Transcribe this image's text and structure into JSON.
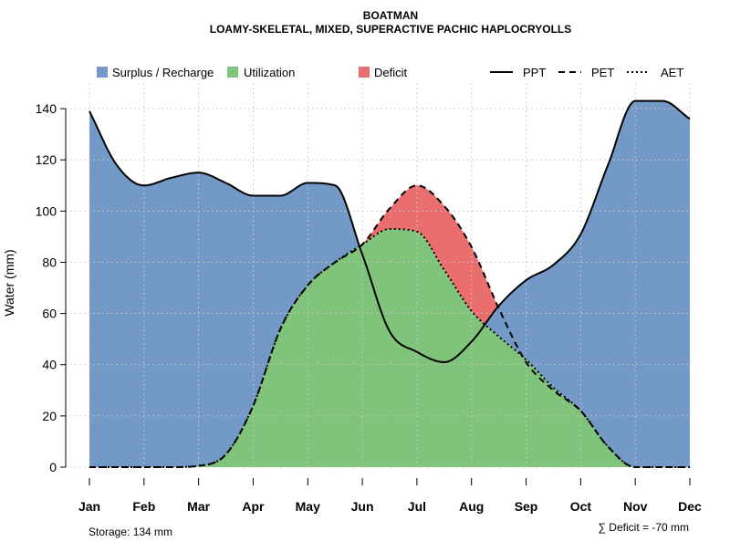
{
  "chart_data": {
    "type": "area",
    "title": "BOATMAN",
    "subtitle": "LOAMY-SKELETAL, MIXED, SUPERACTIVE PACHIC HAPLOCRYOLLS",
    "xlabel": "",
    "ylabel": "Water (mm)",
    "categories": [
      "Jan",
      "Feb",
      "Mar",
      "Apr",
      "May",
      "Jun",
      "Jul",
      "Aug",
      "Sep",
      "Oct",
      "Nov",
      "Dec"
    ],
    "ylim": [
      0,
      150
    ],
    "yticks": [
      0,
      20,
      40,
      60,
      80,
      100,
      120,
      140
    ],
    "grid": true,
    "legend_position": "top",
    "x": [
      1,
      1.5,
      2,
      2.5,
      3,
      3.5,
      4,
      4.5,
      5,
      5.5,
      6,
      6.5,
      7,
      7.5,
      8,
      8.5,
      9,
      9.5,
      10,
      10.5,
      11,
      11.5,
      12
    ],
    "series": [
      {
        "name": "PPT",
        "style": "solid",
        "values": [
          139,
          118,
          110,
          113,
          115,
          111,
          106,
          106,
          111,
          110,
          83,
          53,
          45,
          41,
          49,
          63,
          73,
          79,
          91,
          118,
          143,
          143,
          136
        ]
      },
      {
        "name": "PET",
        "style": "dashed",
        "values": [
          0,
          0,
          0,
          0,
          0.5,
          5,
          24,
          54,
          71,
          80,
          87,
          101,
          110,
          102,
          86,
          62,
          41,
          30,
          22,
          8,
          0,
          0,
          0
        ]
      },
      {
        "name": "AET",
        "style": "dotted",
        "values": [
          0,
          0,
          0,
          0,
          0.5,
          5,
          24,
          54,
          71,
          80,
          87,
          93,
          92,
          77,
          61,
          51,
          42,
          31,
          22,
          8,
          0,
          0,
          0
        ]
      }
    ],
    "legend": [
      {
        "label": "Surplus / Recharge",
        "kind": "fill",
        "color": "#7399C6"
      },
      {
        "label": "Utilization",
        "kind": "fill",
        "color": "#80C37A"
      },
      {
        "label": "Deficit",
        "kind": "fill",
        "color": "#EB6E6E"
      },
      {
        "label": "PPT",
        "kind": "line",
        "dash": "solid"
      },
      {
        "label": "PET",
        "kind": "line",
        "dash": "dashed"
      },
      {
        "label": "AET",
        "kind": "line",
        "dash": "dotted"
      }
    ],
    "annotations": {
      "storage": "Storage: 134 mm",
      "deficit": "∑ Deficit = -70 mm"
    }
  }
}
